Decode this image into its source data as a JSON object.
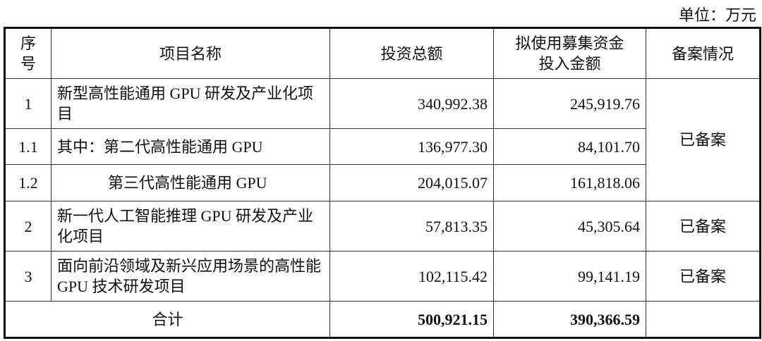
{
  "unit_label": "单位：万元",
  "headers": [
    "序号",
    "项目名称",
    "投资总额",
    "拟使用募集资金投入金额",
    "备案情况"
  ],
  "rows": [
    {
      "no": "1",
      "name": "新型高性能通用 GPU 研发及产业化项目",
      "total": "340,992.38",
      "raised": "245,919.76",
      "status": "已备案"
    },
    {
      "no": "1.1",
      "name": "其中：第二代高性能通用 GPU",
      "total": "136,977.30",
      "raised": "84,101.70"
    },
    {
      "no": "1.2",
      "name": "第三代高性能通用 GPU",
      "total": "204,015.07",
      "raised": "161,818.06"
    },
    {
      "no": "2",
      "name": "新一代人工智能推理 GPU 研发及产业化项目",
      "total": "57,813.35",
      "raised": "45,305.64",
      "status": "已备案"
    },
    {
      "no": "3",
      "name": "面向前沿领域及新兴应用场景的高性能 GPU 技术研发项目",
      "total": "102,115.42",
      "raised": "99,141.19",
      "status": "已备案"
    }
  ],
  "total_row": {
    "label": "合计",
    "total": "500,921.15",
    "raised": "390,366.59"
  }
}
